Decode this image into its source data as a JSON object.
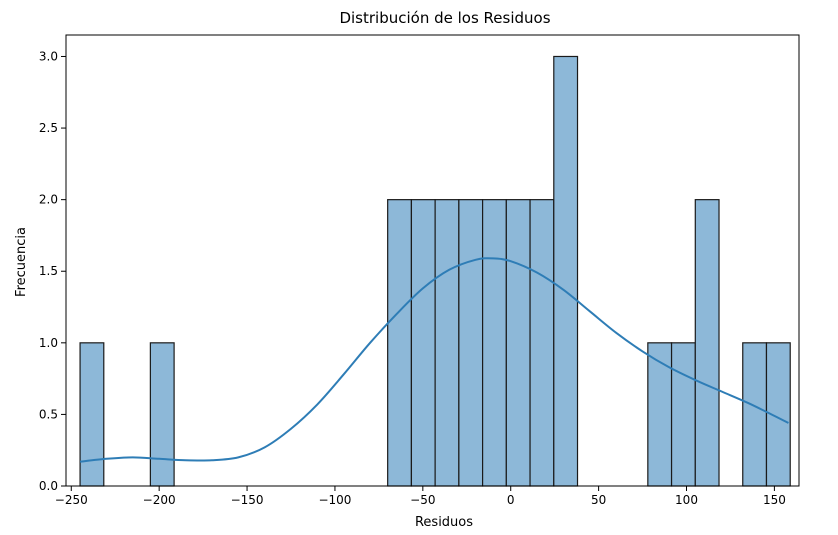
{
  "chart_data": {
    "type": "bar",
    "title": "Distribución de los Residuos",
    "xlabel": "Residuos",
    "ylabel": "Frecuencia",
    "xlim": [
      -253,
      164
    ],
    "ylim": [
      0,
      3.15
    ],
    "grid": false,
    "legend": "none",
    "bar_color": "#8db8d8",
    "bar_edge_color": "#1a1a1a",
    "kde_color": "#2e7db6",
    "x_ticks": [
      -250,
      -200,
      -150,
      -100,
      -50,
      0,
      50,
      100,
      150
    ],
    "x_tick_labels": [
      "−250",
      "−200",
      "−150",
      "−100",
      "−50",
      "0",
      "50",
      "100",
      "150"
    ],
    "y_ticks": [
      0.0,
      0.5,
      1.0,
      1.5,
      2.0,
      2.5,
      3.0
    ],
    "y_tick_labels": [
      "0.0",
      "0.5",
      "1.0",
      "1.5",
      "2.0",
      "2.5",
      "3.0"
    ],
    "bins": [
      {
        "x0": -245,
        "x1": -231.5,
        "count": 1
      },
      {
        "x0": -205,
        "x1": -191.5,
        "count": 1
      },
      {
        "x0": -70,
        "x1": -56.5,
        "count": 2
      },
      {
        "x0": -56.5,
        "x1": -43,
        "count": 2
      },
      {
        "x0": -43,
        "x1": -29.5,
        "count": 2
      },
      {
        "x0": -29.5,
        "x1": -16,
        "count": 2
      },
      {
        "x0": -16,
        "x1": -2.5,
        "count": 2
      },
      {
        "x0": -2.5,
        "x1": 11,
        "count": 2
      },
      {
        "x0": 11,
        "x1": 24.5,
        "count": 2
      },
      {
        "x0": 24.5,
        "x1": 38,
        "count": 3
      },
      {
        "x0": 78,
        "x1": 91.5,
        "count": 1
      },
      {
        "x0": 91.5,
        "x1": 105,
        "count": 1
      },
      {
        "x0": 105,
        "x1": 118.5,
        "count": 2
      },
      {
        "x0": 132,
        "x1": 145.5,
        "count": 1
      },
      {
        "x0": 145.5,
        "x1": 159,
        "count": 1
      }
    ],
    "kde": {
      "x": [
        -245,
        -230,
        -215,
        -200,
        -185,
        -170,
        -155,
        -140,
        -125,
        -110,
        -95,
        -80,
        -65,
        -50,
        -35,
        -20,
        -10,
        0,
        15,
        30,
        45,
        60,
        75,
        90,
        105,
        120,
        135,
        150,
        158
      ],
      "y": [
        0.17,
        0.19,
        0.2,
        0.19,
        0.18,
        0.18,
        0.2,
        0.27,
        0.4,
        0.57,
        0.78,
        1.0,
        1.2,
        1.38,
        1.51,
        1.58,
        1.59,
        1.57,
        1.49,
        1.37,
        1.22,
        1.07,
        0.94,
        0.83,
        0.74,
        0.66,
        0.58,
        0.49,
        0.44
      ]
    }
  }
}
